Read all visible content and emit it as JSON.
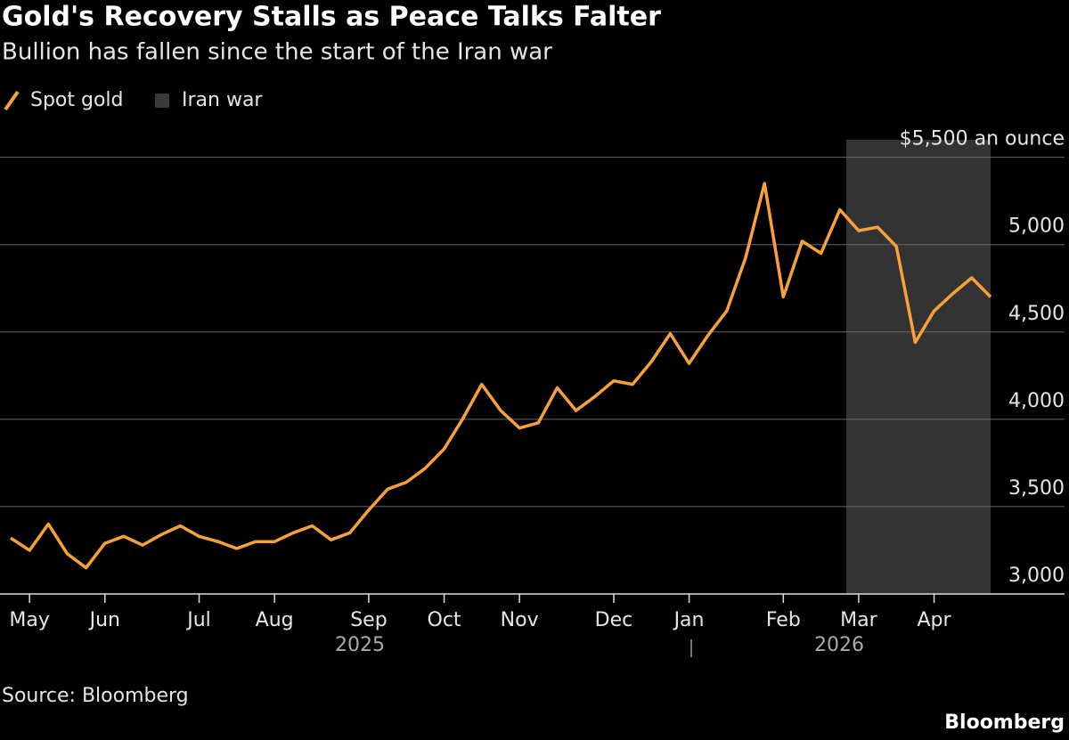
{
  "chart_data": {
    "type": "line",
    "title": "Gold's Recovery Stalls as Peace Talks Falter",
    "subtitle": "Bullion has fallen since the start of the Iran war",
    "categories": [
      null,
      "May",
      null,
      null,
      null,
      "Jun",
      null,
      null,
      null,
      null,
      "Jul",
      null,
      null,
      null,
      "Aug",
      null,
      null,
      null,
      null,
      "Sep",
      null,
      null,
      null,
      "Oct",
      null,
      null,
      null,
      "Nov",
      null,
      null,
      null,
      null,
      "Dec",
      null,
      null,
      null,
      "Jan",
      null,
      null,
      null,
      null,
      "Feb",
      null,
      null,
      null,
      "Mar",
      null,
      null,
      null,
      "Apr",
      null,
      null,
      null
    ],
    "x_year_labels": [
      "2025",
      "2026"
    ],
    "series": [
      {
        "name": "Spot gold",
        "color": "#f7a13a",
        "values": [
          3320,
          3250,
          3400,
          3230,
          3150,
          3290,
          3330,
          3280,
          3340,
          3390,
          3330,
          3300,
          3260,
          3300,
          3300,
          3350,
          3390,
          3310,
          3350,
          3480,
          3600,
          3640,
          3720,
          3830,
          4005,
          4200,
          4050,
          3950,
          3980,
          4180,
          4050,
          4130,
          4220,
          4200,
          4330,
          4490,
          4320,
          4480,
          4620,
          4925,
          5350,
          4700,
          5020,
          4950,
          5200,
          5080,
          5100,
          4990,
          4440,
          4620,
          4720,
          4810,
          4700
        ]
      }
    ],
    "shaded": {
      "name": "Iran war",
      "color": "#333333"
    },
    "ylim": [
      3000,
      5600
    ],
    "yticks": [
      {
        "value": 3000,
        "label": "3,000"
      },
      {
        "value": 3500,
        "label": "3,500"
      },
      {
        "value": 4000,
        "label": "4,000"
      },
      {
        "value": 4500,
        "label": "4,500"
      },
      {
        "value": 5000,
        "label": "5,000"
      },
      {
        "value": 5500,
        "label": "$5,500 an ounce"
      }
    ],
    "grid": true,
    "source": "Source: Bloomberg",
    "brand": "Bloomberg"
  }
}
